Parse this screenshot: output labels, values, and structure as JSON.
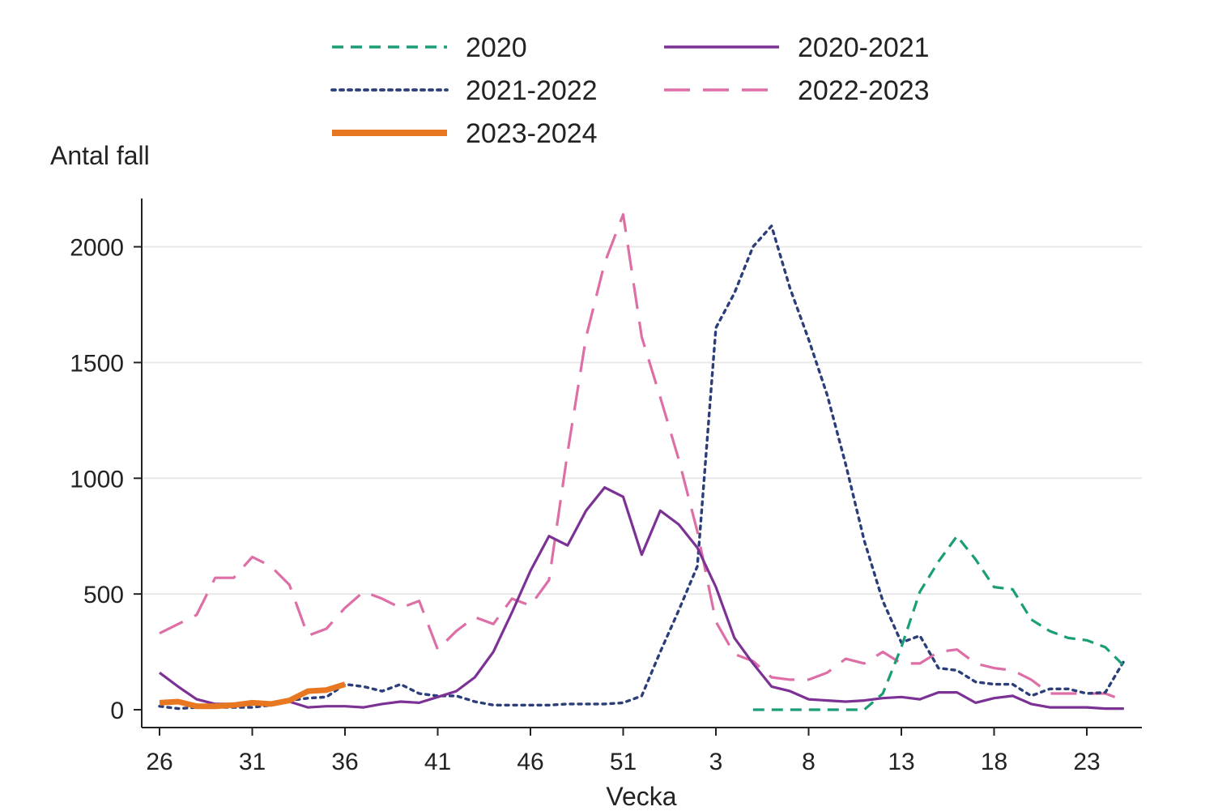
{
  "chart_data": {
    "type": "line",
    "ylabel": "Antal fall",
    "xlabel": "Vecka",
    "ylim": [
      0,
      2200
    ],
    "yticks": [
      0,
      500,
      1000,
      1500,
      2000
    ],
    "x_ticks": [
      "26",
      "31",
      "36",
      "41",
      "46",
      "51",
      "3",
      "8",
      "13",
      "18",
      "23"
    ],
    "grid": "horizontal",
    "legend": "top",
    "series": [
      {
        "name": "2020",
        "color": "#1a9e77",
        "dash": "dash",
        "start_index": 32,
        "values": [
          0,
          0,
          0,
          0,
          0,
          0,
          0,
          70,
          270,
          510,
          640,
          750,
          650,
          530,
          520,
          390,
          340,
          310,
          300,
          270,
          190
        ]
      },
      {
        "name": "2020-2021",
        "color": "#7b3294",
        "dash": "solid",
        "start_index": 0,
        "values": [
          160,
          100,
          45,
          25,
          25,
          25,
          25,
          35,
          10,
          15,
          15,
          10,
          25,
          35,
          30,
          55,
          80,
          140,
          250,
          420,
          600,
          750,
          710,
          860,
          960,
          920,
          670,
          860,
          800,
          700,
          530,
          310,
          200,
          100,
          80,
          45,
          40,
          35,
          40,
          50,
          55,
          45,
          75,
          75,
          30,
          50,
          60,
          25,
          10,
          10,
          10,
          5,
          5
        ]
      },
      {
        "name": "2021-2022",
        "color": "#2c3e7a",
        "dash": "dot",
        "start_index": 0,
        "values": [
          15,
          5,
          10,
          10,
          10,
          10,
          20,
          40,
          50,
          55,
          110,
          100,
          80,
          110,
          70,
          60,
          60,
          35,
          20,
          20,
          20,
          20,
          25,
          25,
          25,
          30,
          60,
          250,
          430,
          620,
          1650,
          1800,
          2000,
          2090,
          1820,
          1600,
          1360,
          1060,
          730,
          470,
          290,
          320,
          180,
          170,
          120,
          110,
          110,
          60,
          90,
          90,
          70,
          75,
          210
        ]
      },
      {
        "name": "2022-2023",
        "color": "#de6fa6",
        "dash": "longdash",
        "start_index": 0,
        "values": [
          330,
          370,
          410,
          570,
          570,
          660,
          620,
          540,
          320,
          350,
          440,
          510,
          480,
          440,
          470,
          260,
          340,
          400,
          370,
          480,
          450,
          560,
          1110,
          1610,
          1930,
          2140,
          1610,
          1350,
          1080,
          770,
          380,
          240,
          210,
          140,
          130,
          130,
          160,
          220,
          200,
          250,
          200,
          200,
          250,
          260,
          200,
          180,
          170,
          130,
          70,
          70,
          70,
          70,
          40
        ]
      },
      {
        "name": "2023-2024",
        "color": "#e87722",
        "dash": "thick",
        "start_index": 0,
        "values": [
          30,
          35,
          15,
          15,
          20,
          30,
          25,
          40,
          80,
          85,
          110
        ]
      }
    ]
  }
}
